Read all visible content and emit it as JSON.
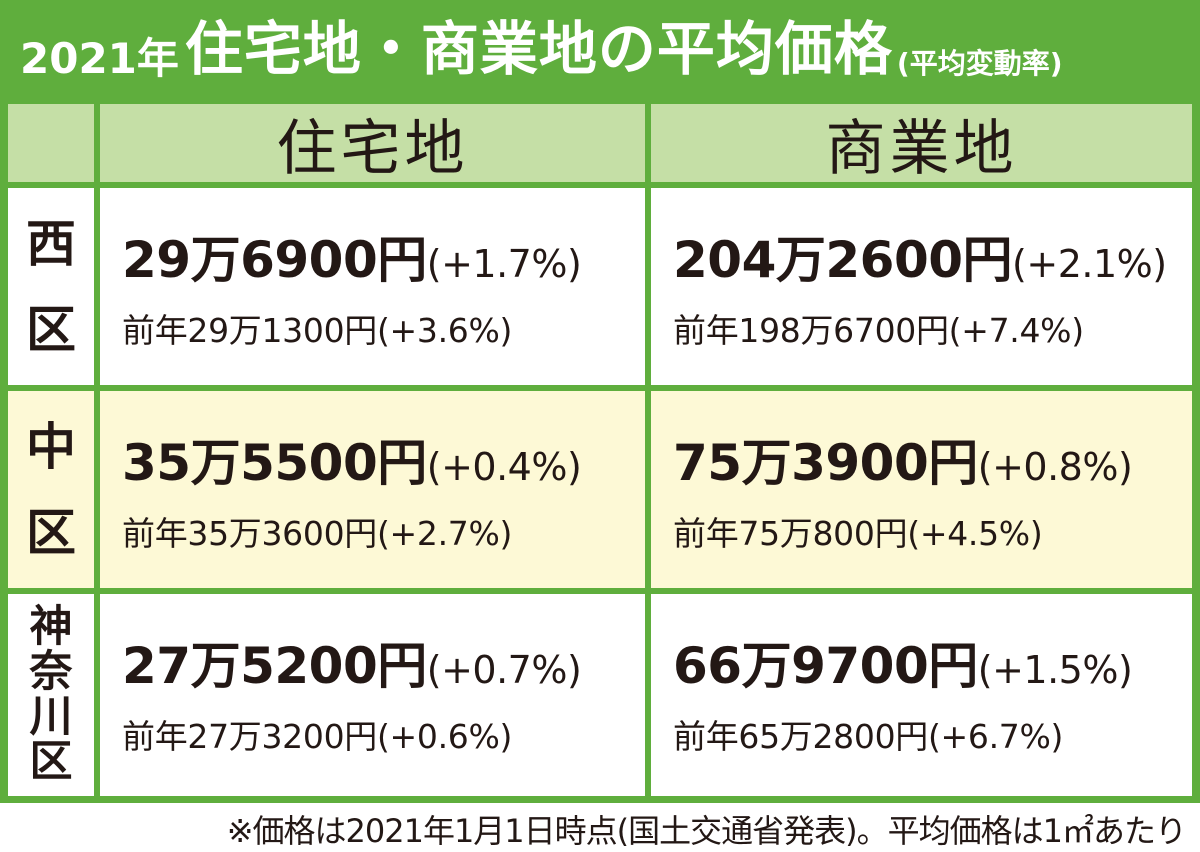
{
  "title": {
    "year": "2021年",
    "main": "住宅地・商業地の平均価格",
    "sub": "(平均変動率)"
  },
  "columns": [
    "住宅地",
    "商業地"
  ],
  "rows": [
    {
      "ward": "西区",
      "residential": {
        "price": "29万6900円",
        "change": "(+1.7%)",
        "prev": "前年29万1300円(+3.6%)"
      },
      "commercial": {
        "price": "204万2600円",
        "change": "(+2.1%)",
        "prev": "前年198万6700円(+7.4%)"
      }
    },
    {
      "ward": "中区",
      "residential": {
        "price": "35万5500円",
        "change": "(+0.4%)",
        "prev": "前年35万3600円(+2.7%)"
      },
      "commercial": {
        "price": "75万3900円",
        "change": "(+0.8%)",
        "prev": "前年75万800円(+4.5%)"
      }
    },
    {
      "ward": "神奈川区",
      "residential": {
        "price": "27万5200円",
        "change": "(+0.7%)",
        "prev": "前年27万3200円(+0.6%)"
      },
      "commercial": {
        "price": "66万9700円",
        "change": "(+1.5%)",
        "prev": "前年65万2800円(+6.7%)"
      }
    }
  ],
  "note": "※価格は2021年1月1日時点(国土交通省発表)。平均価格は1㎡あたり",
  "colors": {
    "frame": "#5fae3d",
    "header": "#c5dfa6",
    "row_highlight": "#fdf9d6",
    "text": "#231815"
  }
}
